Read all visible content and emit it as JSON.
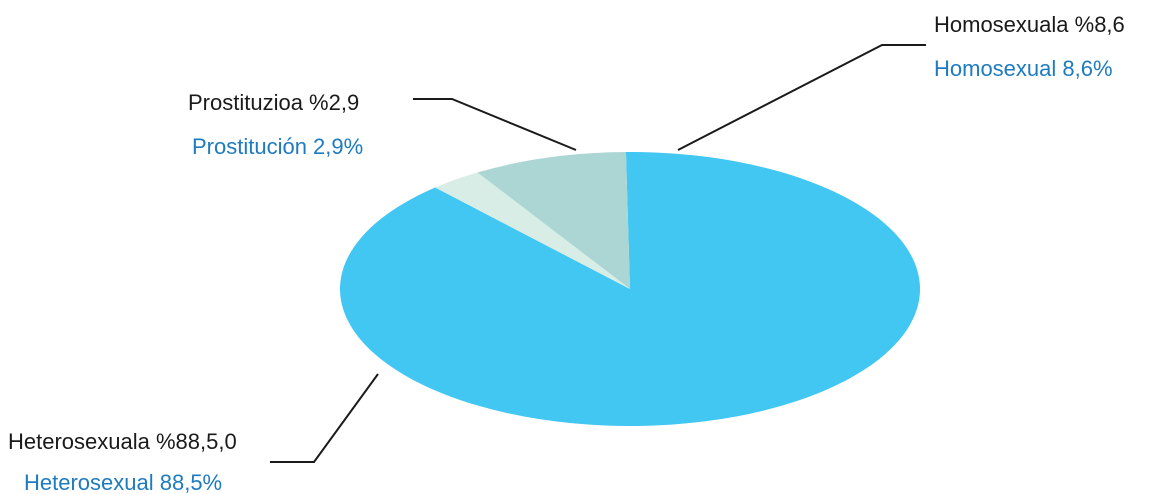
{
  "chart_data": {
    "type": "pie",
    "slices": [
      {
        "value": 88.5,
        "label_eu": "Heterosexuala %88,5,0",
        "label_es": "Heterosexual 88,5%",
        "color": "#42c6f2"
      },
      {
        "value": 2.9,
        "label_eu": "Prostituzioa %2,9",
        "label_es": "Prostitución 2,9%",
        "color": "#d8ede5"
      },
      {
        "value": 8.6,
        "label_eu": "Homosexuala %8,6",
        "label_es": "Homosexual 8,6%",
        "color": "#acd6d4"
      }
    ],
    "secondary_label_color": "#1e7bbf",
    "leader_line_color": "#1a1a1a"
  }
}
